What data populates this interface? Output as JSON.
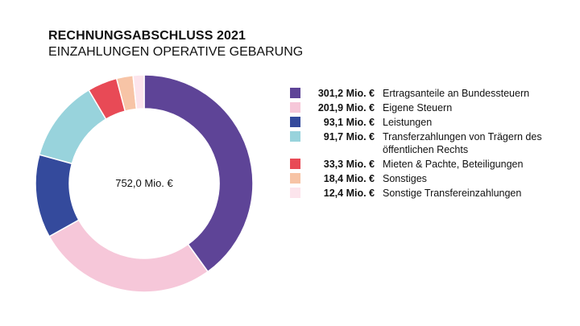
{
  "title": "RECHNUNGSABSCHLUSS 2021",
  "subtitle": "EINZAHLUNGEN OPERATIVE GEBARUNG",
  "chart_data": {
    "type": "pie",
    "variant": "donut",
    "title": "RECHNUNGSABSCHLUSS 2021",
    "subtitle": "EINZAHLUNGEN OPERATIVE GEBARUNG",
    "center_label": "752,0 Mio. €",
    "legend_position": "right",
    "slices": [
      {
        "label": "Ertragsanteile an Bundessteuern",
        "value": 301.2,
        "value_label": "301,2 Mio. €",
        "color": "#5e4497"
      },
      {
        "label": "Eigene Steuern",
        "value": 201.9,
        "value_label": "201,9 Mio. €",
        "color": "#f6c7d9"
      },
      {
        "label": "Leistungen",
        "value": 93.1,
        "value_label": "93,1 Mio. €",
        "color": "#344a9c"
      },
      {
        "label": "Transferzahlungen von Trägern des öffentlichen Rechts",
        "value": 91.7,
        "value_label": "91,7 Mio. €",
        "color": "#98d3dc"
      },
      {
        "label": "Mieten & Pachte, Beteiligungen",
        "value": 33.3,
        "value_label": "33,3 Mio. €",
        "color": "#e84a56"
      },
      {
        "label": "Sonstiges",
        "value": 18.4,
        "value_label": "18,4 Mio. €",
        "color": "#f7c4a6"
      },
      {
        "label": "Sonstige Transfereinzahlungen",
        "value": 12.4,
        "value_label": "12,4 Mio. €",
        "color": "#fce4ec"
      }
    ]
  }
}
